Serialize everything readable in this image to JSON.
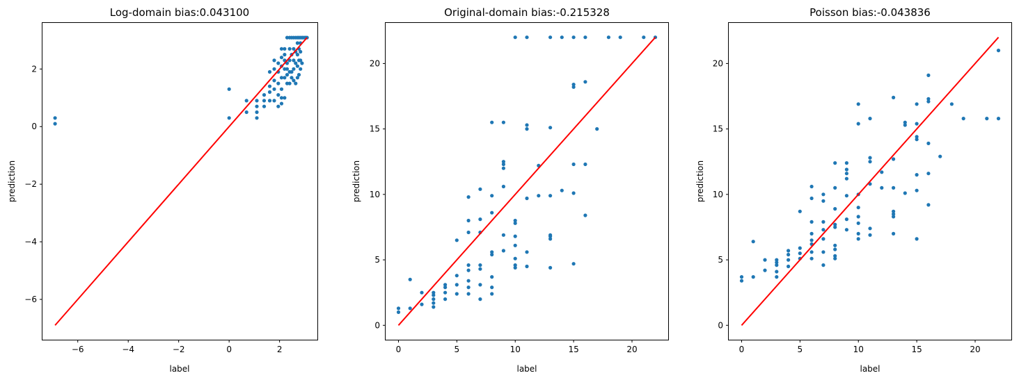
{
  "chart_data": [
    {
      "type": "scatter",
      "title": "Log-domain bias:0.043100",
      "xlabel": "label",
      "ylabel": "prediction",
      "xlim": [
        -7.4,
        3.5
      ],
      "ylim": [
        -7.4,
        3.6
      ],
      "xticks": [
        -6,
        -4,
        -2,
        0,
        2
      ],
      "yticks": [
        -6,
        -4,
        -2,
        0,
        2
      ],
      "grid": false,
      "point_color": "#1f77b4",
      "line_color": "#ff0000",
      "identity_line": [
        -6.9,
        3.09
      ],
      "points": [
        [
          -6.9,
          0.1
        ],
        [
          -6.9,
          0.3
        ],
        [
          0,
          0.3
        ],
        [
          0,
          1.3
        ],
        [
          0.69,
          0.5
        ],
        [
          0.69,
          0.9
        ],
        [
          1.1,
          0.3
        ],
        [
          1.1,
          0.5
        ],
        [
          1.1,
          0.7
        ],
        [
          1.1,
          0.9
        ],
        [
          1.39,
          0.7
        ],
        [
          1.39,
          0.9
        ],
        [
          1.39,
          1.1
        ],
        [
          1.61,
          0.9
        ],
        [
          1.61,
          1.2
        ],
        [
          1.61,
          1.4
        ],
        [
          1.61,
          1.9
        ],
        [
          1.79,
          0.9
        ],
        [
          1.79,
          1.3
        ],
        [
          1.79,
          1.6
        ],
        [
          1.79,
          2.0
        ],
        [
          1.79,
          2.3
        ],
        [
          1.95,
          0.7
        ],
        [
          1.95,
          1.1
        ],
        [
          1.95,
          1.5
        ],
        [
          1.95,
          1.9
        ],
        [
          1.95,
          2.2
        ],
        [
          2.08,
          0.8
        ],
        [
          2.08,
          1.0
        ],
        [
          2.08,
          1.3
        ],
        [
          2.08,
          1.7
        ],
        [
          2.08,
          2.1
        ],
        [
          2.08,
          2.4
        ],
        [
          2.08,
          2.7
        ],
        [
          2.2,
          1.0
        ],
        [
          2.2,
          1.7
        ],
        [
          2.2,
          2.0
        ],
        [
          2.2,
          2.3
        ],
        [
          2.2,
          2.5
        ],
        [
          2.2,
          2.7
        ],
        [
          2.3,
          1.5
        ],
        [
          2.3,
          1.8
        ],
        [
          2.3,
          2.0
        ],
        [
          2.3,
          2.2
        ],
        [
          2.3,
          3.09
        ],
        [
          2.4,
          1.5
        ],
        [
          2.4,
          1.9
        ],
        [
          2.4,
          2.3
        ],
        [
          2.4,
          2.7
        ],
        [
          2.4,
          3.09
        ],
        [
          2.48,
          1.7
        ],
        [
          2.48,
          1.9
        ],
        [
          2.48,
          2.5
        ],
        [
          2.48,
          3.09
        ],
        [
          2.56,
          1.6
        ],
        [
          2.56,
          2.0
        ],
        [
          2.56,
          2.3
        ],
        [
          2.56,
          2.7
        ],
        [
          2.56,
          3.09
        ],
        [
          2.64,
          1.5
        ],
        [
          2.64,
          2.2
        ],
        [
          2.64,
          2.6
        ],
        [
          2.64,
          3.09
        ],
        [
          2.71,
          1.7
        ],
        [
          2.71,
          2.1
        ],
        [
          2.71,
          2.5
        ],
        [
          2.71,
          2.9
        ],
        [
          2.71,
          3.09
        ],
        [
          2.77,
          1.8
        ],
        [
          2.77,
          2.3
        ],
        [
          2.77,
          2.7
        ],
        [
          2.77,
          3.09
        ],
        [
          2.83,
          2.0
        ],
        [
          2.83,
          2.3
        ],
        [
          2.83,
          2.6
        ],
        [
          2.83,
          2.9
        ],
        [
          2.83,
          3.09
        ],
        [
          2.89,
          2.2
        ],
        [
          2.89,
          3.09
        ],
        [
          2.94,
          3.09
        ],
        [
          3.0,
          3.09
        ],
        [
          3.04,
          3.09
        ],
        [
          3.09,
          3.09
        ]
      ]
    },
    {
      "type": "scatter",
      "title": "Original-domain bias:-0.215328",
      "xlabel": "label",
      "ylabel": "prediction",
      "xlim": [
        -1.1,
        23.1
      ],
      "ylim": [
        -1.1,
        23.1
      ],
      "xticks": [
        0,
        5,
        10,
        15,
        20
      ],
      "yticks": [
        0,
        5,
        10,
        15,
        20
      ],
      "grid": false,
      "point_color": "#1f77b4",
      "line_color": "#ff0000",
      "identity_line": [
        0,
        22
      ],
      "points": [
        [
          0,
          1.0
        ],
        [
          0,
          1.3
        ],
        [
          1,
          1.3
        ],
        [
          1,
          3.5
        ],
        [
          2,
          1.6
        ],
        [
          2,
          2.5
        ],
        [
          3,
          1.4
        ],
        [
          3,
          1.7
        ],
        [
          3,
          2.0
        ],
        [
          3,
          2.3
        ],
        [
          3,
          2.5
        ],
        [
          4,
          2.0
        ],
        [
          4,
          2.5
        ],
        [
          4,
          2.9
        ],
        [
          4,
          3.1
        ],
        [
          5,
          2.4
        ],
        [
          5,
          3.1
        ],
        [
          5,
          3.8
        ],
        [
          5,
          6.5
        ],
        [
          6,
          2.4
        ],
        [
          6,
          2.9
        ],
        [
          6,
          3.4
        ],
        [
          6,
          4.2
        ],
        [
          6,
          4.6
        ],
        [
          6,
          7.1
        ],
        [
          6,
          8.0
        ],
        [
          6,
          9.8
        ],
        [
          7,
          2.0
        ],
        [
          7,
          3.1
        ],
        [
          7,
          4.3
        ],
        [
          7,
          4.6
        ],
        [
          7,
          7.1
        ],
        [
          7,
          8.1
        ],
        [
          7,
          10.4
        ],
        [
          8,
          2.4
        ],
        [
          8,
          2.9
        ],
        [
          8,
          3.7
        ],
        [
          8,
          5.4
        ],
        [
          8,
          5.6
        ],
        [
          8,
          8.6
        ],
        [
          8,
          9.9
        ],
        [
          8,
          15.5
        ],
        [
          9,
          5.7
        ],
        [
          9,
          6.9
        ],
        [
          9,
          10.6
        ],
        [
          9,
          12.0
        ],
        [
          9,
          12.3
        ],
        [
          9,
          12.5
        ],
        [
          9,
          15.5
        ],
        [
          10,
          4.4
        ],
        [
          10,
          4.6
        ],
        [
          10,
          5.1
        ],
        [
          10,
          6.1
        ],
        [
          10,
          6.8
        ],
        [
          10,
          7.8
        ],
        [
          10,
          8.0
        ],
        [
          10,
          22
        ],
        [
          11,
          4.5
        ],
        [
          11,
          5.6
        ],
        [
          11,
          9.7
        ],
        [
          11,
          15.0
        ],
        [
          11,
          15.3
        ],
        [
          11,
          22
        ],
        [
          12,
          9.9
        ],
        [
          12,
          12.2
        ],
        [
          13,
          4.4
        ],
        [
          13,
          6.6
        ],
        [
          13,
          6.8
        ],
        [
          13,
          6.9
        ],
        [
          13,
          9.9
        ],
        [
          13,
          15.1
        ],
        [
          13,
          22
        ],
        [
          14,
          10.3
        ],
        [
          14,
          22
        ],
        [
          15,
          4.7
        ],
        [
          15,
          10.1
        ],
        [
          15,
          12.3
        ],
        [
          15,
          18.2
        ],
        [
          15,
          18.4
        ],
        [
          15,
          22
        ],
        [
          16,
          8.4
        ],
        [
          16,
          12.3
        ],
        [
          16,
          18.6
        ],
        [
          16,
          22
        ],
        [
          17,
          15.0
        ],
        [
          18,
          22
        ],
        [
          19,
          22
        ],
        [
          21,
          22
        ],
        [
          22,
          22
        ]
      ]
    },
    {
      "type": "scatter",
      "title": "Poisson bias:-0.043836",
      "xlabel": "label",
      "ylabel": "prediction",
      "xlim": [
        -1.1,
        23.1
      ],
      "ylim": [
        -1.1,
        23.1
      ],
      "xticks": [
        0,
        5,
        10,
        15,
        20
      ],
      "yticks": [
        0,
        5,
        10,
        15,
        20
      ],
      "grid": false,
      "point_color": "#1f77b4",
      "line_color": "#ff0000",
      "identity_line": [
        0,
        22
      ],
      "points": [
        [
          0,
          3.4
        ],
        [
          0,
          3.7
        ],
        [
          1,
          3.7
        ],
        [
          1,
          6.4
        ],
        [
          2,
          4.2
        ],
        [
          2,
          5.0
        ],
        [
          3,
          3.7
        ],
        [
          3,
          4.1
        ],
        [
          3,
          4.6
        ],
        [
          3,
          4.8
        ],
        [
          3,
          5.0
        ],
        [
          4,
          4.5
        ],
        [
          4,
          5.0
        ],
        [
          4,
          5.4
        ],
        [
          4,
          5.7
        ],
        [
          5,
          5.1
        ],
        [
          5,
          5.5
        ],
        [
          5,
          5.9
        ],
        [
          5,
          8.7
        ],
        [
          6,
          5.1
        ],
        [
          6,
          5.6
        ],
        [
          6,
          6.2
        ],
        [
          6,
          6.5
        ],
        [
          6,
          7.0
        ],
        [
          6,
          7.9
        ],
        [
          6,
          9.7
        ],
        [
          6,
          10.6
        ],
        [
          7,
          4.6
        ],
        [
          7,
          5.6
        ],
        [
          7,
          6.6
        ],
        [
          7,
          7.3
        ],
        [
          7,
          7.9
        ],
        [
          7,
          9.5
        ],
        [
          7,
          10.0
        ],
        [
          8,
          5.1
        ],
        [
          8,
          5.3
        ],
        [
          8,
          5.8
        ],
        [
          8,
          6.1
        ],
        [
          8,
          7.5
        ],
        [
          8,
          7.7
        ],
        [
          8,
          8.9
        ],
        [
          8,
          10.5
        ],
        [
          8,
          12.4
        ],
        [
          9,
          7.3
        ],
        [
          9,
          8.1
        ],
        [
          9,
          9.9
        ],
        [
          9,
          11.2
        ],
        [
          9,
          11.6
        ],
        [
          9,
          11.9
        ],
        [
          9,
          12.4
        ],
        [
          10,
          6.6
        ],
        [
          10,
          7.0
        ],
        [
          10,
          7.8
        ],
        [
          10,
          8.3
        ],
        [
          10,
          9.0
        ],
        [
          10,
          10.0
        ],
        [
          10,
          15.4
        ],
        [
          10,
          16.9
        ],
        [
          11,
          6.9
        ],
        [
          11,
          7.4
        ],
        [
          11,
          10.8
        ],
        [
          11,
          12.5
        ],
        [
          11,
          12.8
        ],
        [
          11,
          15.8
        ],
        [
          12,
          10.5
        ],
        [
          12,
          11.7
        ],
        [
          13,
          7.0
        ],
        [
          13,
          8.3
        ],
        [
          13,
          8.5
        ],
        [
          13,
          8.7
        ],
        [
          13,
          10.5
        ],
        [
          13,
          12.7
        ],
        [
          13,
          17.4
        ],
        [
          14,
          10.1
        ],
        [
          14,
          15.3
        ],
        [
          14,
          15.5
        ],
        [
          15,
          6.6
        ],
        [
          15,
          10.3
        ],
        [
          15,
          11.5
        ],
        [
          15,
          14.2
        ],
        [
          15,
          14.4
        ],
        [
          15,
          15.4
        ],
        [
          15,
          16.9
        ],
        [
          16,
          9.2
        ],
        [
          16,
          11.6
        ],
        [
          16,
          13.9
        ],
        [
          16,
          17.1
        ],
        [
          16,
          17.3
        ],
        [
          16,
          19.1
        ],
        [
          17,
          12.9
        ],
        [
          18,
          16.9
        ],
        [
          19,
          15.8
        ],
        [
          21,
          15.8
        ],
        [
          22,
          15.8
        ],
        [
          22,
          21.0
        ]
      ]
    }
  ]
}
